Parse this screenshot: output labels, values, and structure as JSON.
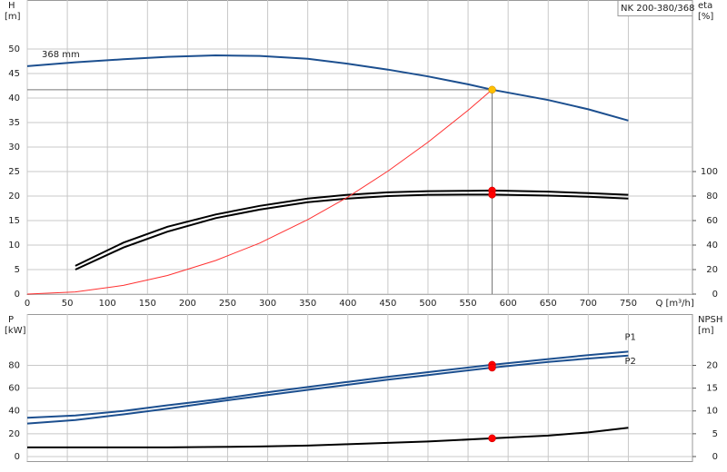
{
  "chart_data": [
    {
      "type": "line",
      "annotation": "NK 200-380/368",
      "ylabel": "H",
      "yunit": "[m]",
      "y2label": "eta",
      "y2unit": "[%]",
      "xlabel": "Q [m³/h]",
      "x": [
        0,
        60,
        120,
        175,
        235,
        290,
        350,
        400,
        450,
        500,
        550,
        580,
        650,
        700,
        750
      ],
      "xlim": [
        0,
        830
      ],
      "xticks": [
        0,
        50,
        100,
        150,
        200,
        250,
        300,
        350,
        400,
        450,
        500,
        550,
        600,
        650,
        700,
        750
      ],
      "ylim": [
        0,
        60
      ],
      "yticks": [
        0,
        5,
        10,
        15,
        20,
        25,
        30,
        35,
        40,
        45,
        50
      ],
      "y2lim": [
        0,
        240
      ],
      "y2ticks": [
        0,
        20,
        40,
        60,
        80,
        100
      ],
      "grid": true,
      "series": [
        {
          "name": "368 mm",
          "color": "#1c4f8f",
          "values": [
            46.5,
            47.3,
            47.9,
            48.4,
            48.7,
            48.6,
            48.0,
            47.0,
            45.8,
            44.4,
            42.8,
            41.7,
            39.6,
            37.7,
            35.4
          ]
        },
        {
          "color": "#000000",
          "axis": "y2",
          "values": [
            null,
            23,
            42,
            55,
            65,
            72,
            78,
            81,
            83,
            84,
            84.3,
            84.5,
            83.6,
            82.4,
            81
          ]
        },
        {
          "color": "#000000",
          "axis": "y2",
          "values": [
            null,
            20,
            38,
            51,
            62,
            69,
            75,
            78,
            80,
            81,
            81.2,
            81.2,
            80.4,
            79.5,
            78
          ]
        },
        {
          "color": "#ff3030",
          "values": [
            0,
            0.45,
            1.78,
            3.8,
            6.85,
            10.4,
            15.2,
            19.8,
            25.1,
            31.0,
            37.5,
            41.7,
            null,
            null,
            null
          ]
        }
      ],
      "points": [
        {
          "x": 580,
          "y": 41.7,
          "color": "#ffc000",
          "guide": true
        },
        {
          "x": 580,
          "y": 84.5,
          "axis": "y2",
          "color": "#ff0000"
        },
        {
          "x": 580,
          "y": 81.2,
          "axis": "y2",
          "color": "#ff0000"
        }
      ]
    },
    {
      "type": "line",
      "ylabel": "P",
      "yunit": "[kW]",
      "y2label": "NPSH",
      "y2unit": "[m]",
      "x": [
        0,
        60,
        120,
        175,
        235,
        290,
        350,
        400,
        450,
        500,
        580,
        650,
        700,
        750
      ],
      "xlim": [
        0,
        830
      ],
      "xticks": [
        0,
        50,
        100,
        150,
        200,
        250,
        300,
        350,
        400,
        450,
        500,
        550,
        600,
        650,
        700,
        750
      ],
      "ylim": [
        -4,
        125
      ],
      "yticks": [
        0,
        20,
        40,
        60,
        80
      ],
      "y2lim": [
        -1,
        31.25
      ],
      "y2ticks": [
        0,
        5,
        10,
        15,
        20
      ],
      "grid": true,
      "series": [
        {
          "name": "P1",
          "color": "#1c4f8f",
          "values": [
            34,
            36,
            40,
            45,
            50,
            55.5,
            61,
            65.5,
            70,
            74,
            80.5,
            85.5,
            89,
            92
          ]
        },
        {
          "name": "P2",
          "color": "#1c4f8f",
          "values": [
            29,
            32,
            37,
            42,
            48,
            53,
            58.5,
            63,
            67.5,
            71.5,
            78,
            83,
            86,
            88.5
          ]
        },
        {
          "color": "#000000",
          "axis": "y2",
          "values": [
            2.0,
            2.0,
            2.0,
            2.0,
            2.1,
            2.2,
            2.4,
            2.7,
            3.0,
            3.3,
            4.0,
            4.6,
            5.3,
            6.3
          ]
        }
      ],
      "points": [
        {
          "x": 580,
          "y": 80.5,
          "color": "#ff0000"
        },
        {
          "x": 580,
          "y": 78,
          "color": "#ff0000"
        },
        {
          "x": 580,
          "y": 4.0,
          "axis": "y2",
          "color": "#ff0000"
        }
      ]
    }
  ]
}
